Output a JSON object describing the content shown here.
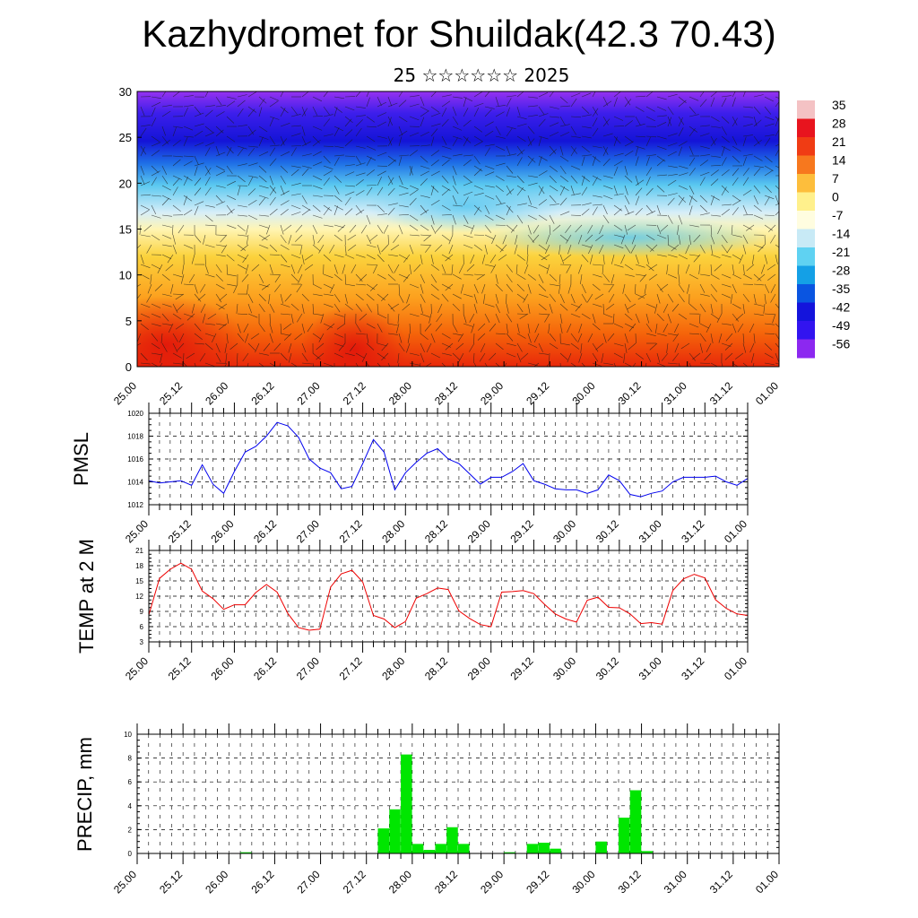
{
  "page": {
    "title": "Kazhydromet for Shuildak(42.3 70.43)",
    "subtitle": "25 ☆☆☆☆☆☆ 2025"
  },
  "chart_data": [
    {
      "type": "heatmap",
      "name": "cross-section",
      "ylim": [
        0,
        30
      ],
      "yticks": [
        0,
        5,
        10,
        15,
        20,
        25,
        30
      ],
      "xlabels": [
        "25.00",
        "25.12",
        "26.00",
        "26.12",
        "27.00",
        "27.12",
        "28.00",
        "28.12",
        "29.00",
        "29.12",
        "30.00",
        "30.12",
        "31.00",
        "31.12",
        "01.00"
      ],
      "colorbar": {
        "labels": [
          "35",
          "28",
          "21",
          "14",
          "7",
          "0",
          "-7",
          "-14",
          "-21",
          "-28",
          "-35",
          "-42",
          "-49",
          "-56"
        ],
        "colors": [
          "#f4c2c4",
          "#e8141e",
          "#f03c14",
          "#f7781e",
          "#fdbe3c",
          "#fff08c",
          "#fffde0",
          "#c8eaf6",
          "#5fd2f2",
          "#14a0e6",
          "#0a55e1",
          "#1414dc",
          "#3214f0",
          "#8c28f0"
        ]
      }
    },
    {
      "type": "line",
      "name": "pmsl",
      "ylabel": "PMSL",
      "ylim": [
        1012,
        1020
      ],
      "yticks": [
        1012,
        1014,
        1016,
        1018,
        1020
      ],
      "color": "#0000ee",
      "xlabels": [
        "25.00",
        "25.12",
        "26.00",
        "26.12",
        "27.00",
        "27.12",
        "28.00",
        "28.12",
        "29.00",
        "29.12",
        "30.00",
        "30.12",
        "31.00",
        "31.12",
        "01.00"
      ],
      "x": [
        0,
        1,
        2,
        3,
        4,
        5,
        6,
        7,
        8,
        9,
        10,
        11,
        12,
        13,
        14,
        15,
        16,
        17,
        18,
        19,
        20,
        21,
        22,
        23,
        24,
        25,
        26,
        27,
        28,
        29,
        30,
        31,
        32,
        33,
        34,
        35,
        36,
        37,
        38,
        39,
        40,
        41,
        42,
        43,
        44,
        45,
        46,
        47,
        48,
        49,
        50,
        51,
        52,
        53,
        54,
        55,
        56
      ],
      "values": [
        1014.1,
        1013.9,
        1014.0,
        1014.1,
        1013.7,
        1015.5,
        1013.8,
        1013.0,
        1014.9,
        1016.6,
        1017.1,
        1018.0,
        1019.2,
        1018.9,
        1017.9,
        1016.0,
        1015.2,
        1014.8,
        1013.4,
        1013.6,
        1015.6,
        1017.7,
        1016.6,
        1013.3,
        1014.8,
        1015.7,
        1016.5,
        1016.9,
        1016.0,
        1015.6,
        1014.7,
        1013.8,
        1014.4,
        1014.4,
        1014.9,
        1015.6,
        1014.1,
        1013.8,
        1013.4,
        1013.3,
        1013.3,
        1013.0,
        1013.3,
        1014.6,
        1014.1,
        1012.9,
        1012.7,
        1013.0,
        1013.2,
        1014.0,
        1014.4,
        1014.4,
        1014.4,
        1014.5,
        1014.0,
        1013.7,
        1014.3
      ]
    },
    {
      "type": "line",
      "name": "temp2m",
      "ylabel": "TEMP at 2 M",
      "ylim": [
        3,
        21
      ],
      "yticks": [
        3,
        6,
        9,
        12,
        15,
        18,
        21
      ],
      "color": "#ee0000",
      "xlabels": [
        "25.00",
        "25.12",
        "26.00",
        "26.12",
        "27.00",
        "27.12",
        "28.00",
        "28.12",
        "29.00",
        "29.12",
        "30.00",
        "30.12",
        "31.00",
        "31.12",
        "01.00"
      ],
      "x": [
        0,
        1,
        2,
        3,
        4,
        5,
        6,
        7,
        8,
        9,
        10,
        11,
        12,
        13,
        14,
        15,
        16,
        17,
        18,
        19,
        20,
        21,
        22,
        23,
        24,
        25,
        26,
        27,
        28,
        29,
        30,
        31,
        32,
        33,
        34,
        35,
        36,
        37,
        38,
        39,
        40,
        41,
        42,
        43,
        44,
        45,
        46,
        47,
        48,
        49,
        50,
        51,
        52,
        53,
        54,
        55,
        56
      ],
      "values": [
        8.3,
        15.5,
        17.3,
        18.5,
        17.3,
        13.0,
        11.5,
        9.4,
        10.3,
        10.3,
        12.7,
        14.3,
        12.8,
        8.6,
        5.8,
        5.3,
        5.5,
        13.8,
        16.4,
        17.1,
        14.8,
        8.2,
        7.5,
        5.8,
        7.0,
        11.6,
        12.5,
        13.6,
        13.3,
        9.1,
        7.6,
        6.4,
        6.0,
        12.8,
        12.9,
        13.1,
        12.5,
        10.4,
        8.5,
        7.5,
        6.9,
        11.2,
        11.8,
        9.8,
        9.7,
        8.5,
        6.6,
        6.8,
        6.5,
        13.1,
        15.4,
        16.3,
        15.6,
        11.3,
        9.6,
        8.5,
        8.2
      ]
    },
    {
      "type": "bar",
      "name": "precip",
      "ylabel": "PRECIP, mm",
      "ylim": [
        0,
        10
      ],
      "yticks": [
        0,
        2,
        4,
        6,
        8,
        10
      ],
      "color": "#00e600",
      "xlabels": [
        "25.00",
        "25.12",
        "26.00",
        "26.12",
        "27.00",
        "27.12",
        "28.00",
        "28.12",
        "29.00",
        "29.12",
        "30.00",
        "30.12",
        "31.00",
        "31.12",
        "01.00"
      ],
      "bars": [
        {
          "x": 9,
          "value": 0.1
        },
        {
          "x": 21,
          "value": 2.1
        },
        {
          "x": 22,
          "value": 3.7
        },
        {
          "x": 23,
          "value": 8.3
        },
        {
          "x": 24,
          "value": 0.8
        },
        {
          "x": 25,
          "value": 0.3
        },
        {
          "x": 26,
          "value": 0.8
        },
        {
          "x": 27,
          "value": 2.2
        },
        {
          "x": 28,
          "value": 0.8
        },
        {
          "x": 32,
          "value": 0.1
        },
        {
          "x": 34,
          "value": 0.8
        },
        {
          "x": 35,
          "value": 0.9
        },
        {
          "x": 36,
          "value": 0.4
        },
        {
          "x": 40,
          "value": 1.0
        },
        {
          "x": 42,
          "value": 3.0
        },
        {
          "x": 43,
          "value": 5.3
        },
        {
          "x": 44,
          "value": 0.2
        }
      ]
    }
  ]
}
